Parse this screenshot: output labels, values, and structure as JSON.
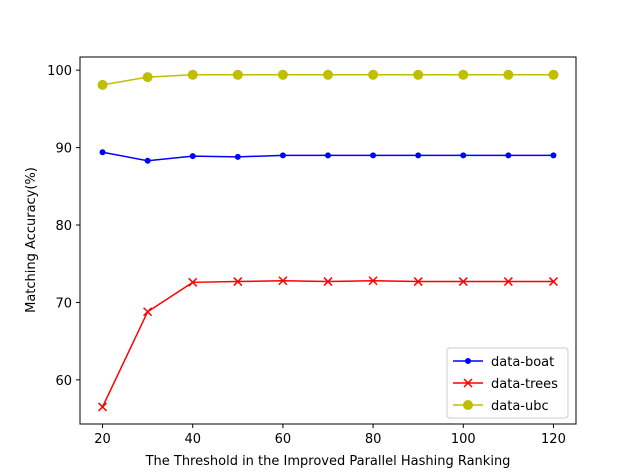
{
  "chart_data": {
    "type": "line",
    "title": "",
    "xlabel": "The Threshold in the Improved Parallel Hashing Ranking",
    "ylabel": "Matching Accuracy(%)",
    "xlim": [
      15,
      125
    ],
    "ylim": [
      54.3,
      101.7
    ],
    "xticks": [
      20,
      40,
      60,
      80,
      100,
      120
    ],
    "yticks": [
      60,
      70,
      80,
      90,
      100
    ],
    "x": [
      20,
      30,
      40,
      50,
      60,
      70,
      80,
      90,
      100,
      110,
      120
    ],
    "series": [
      {
        "name": "data-boat",
        "color": "#0000ff",
        "marker": "point",
        "values": [
          89.4,
          88.3,
          88.9,
          88.8,
          89.0,
          89.0,
          89.0,
          89.0,
          89.0,
          89.0,
          89.0
        ]
      },
      {
        "name": "data-trees",
        "color": "#ff0000",
        "marker": "x",
        "values": [
          56.5,
          68.8,
          72.6,
          72.7,
          72.8,
          72.7,
          72.8,
          72.7,
          72.7,
          72.7,
          72.7
        ]
      },
      {
        "name": "data-ubc",
        "color": "#bfbf00",
        "marker": "circle",
        "values": [
          98.1,
          99.1,
          99.4,
          99.4,
          99.4,
          99.4,
          99.4,
          99.4,
          99.4,
          99.4,
          99.4
        ]
      }
    ],
    "legend": {
      "position": "lower-right",
      "labels": [
        "data-boat",
        "data-trees",
        "data-ubc"
      ]
    },
    "grid": false
  }
}
